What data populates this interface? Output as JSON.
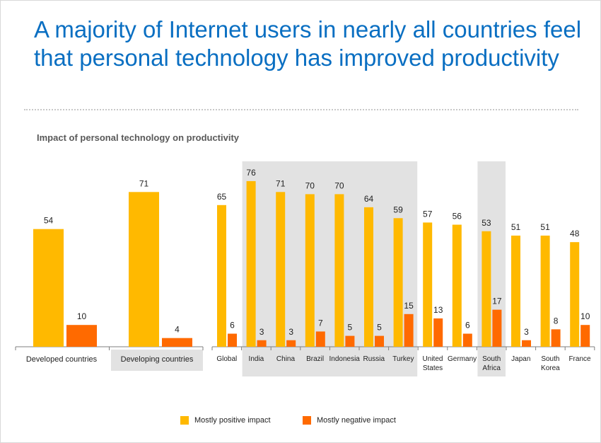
{
  "title_line1": "A majority of Internet users in nearly all countries feel",
  "title_line2": "that personal technology has improved productivity",
  "subtitle": "Impact of personal technology on productivity",
  "colors": {
    "positive": "#ffb900",
    "negative": "#ff6a00",
    "highlight": "#e2e2e2",
    "title": "#0a6fc2"
  },
  "legend": {
    "positive": "Mostly positive impact",
    "negative": "Mostly negative impact"
  },
  "chart_data": [
    {
      "type": "bar",
      "categories": [
        "Developed countries",
        "Developing countries"
      ],
      "series": [
        {
          "name": "Mostly positive impact",
          "values": [
            54,
            71
          ]
        },
        {
          "name": "Mostly negative impact",
          "values": [
            10,
            4
          ]
        }
      ],
      "highlighted": [
        "Developing countries"
      ],
      "ylim": [
        0,
        80
      ]
    },
    {
      "type": "bar",
      "categories": [
        "Global",
        "India",
        "China",
        "Brazil",
        "Indonesia",
        "Russia",
        "Turkey",
        "United States",
        "Germany",
        "South Africa",
        "Japan",
        "South Korea",
        "France"
      ],
      "series": [
        {
          "name": "Mostly positive impact",
          "values": [
            65,
            76,
            71,
            70,
            70,
            64,
            59,
            57,
            56,
            53,
            51,
            51,
            48
          ]
        },
        {
          "name": "Mostly negative impact",
          "values": [
            6,
            3,
            3,
            7,
            5,
            5,
            15,
            13,
            6,
            17,
            3,
            8,
            10
          ]
        }
      ],
      "highlighted": [
        "India",
        "China",
        "Brazil",
        "Indonesia",
        "Russia",
        "Turkey",
        "South Africa"
      ],
      "ylim": [
        0,
        80
      ]
    }
  ]
}
